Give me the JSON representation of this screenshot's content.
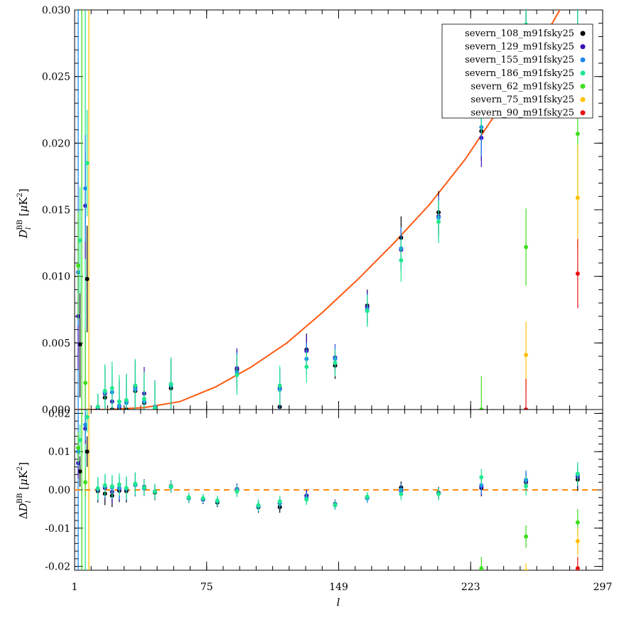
{
  "chart_data": [
    {
      "type": "scatter",
      "panel": "top",
      "ylabel": "D_l^BB [μK²]",
      "ylim": [
        0.0,
        0.03
      ],
      "xlim": [
        1,
        297
      ],
      "x_ticks": [
        "1",
        "75",
        "149",
        "223",
        "297"
      ],
      "y_ticks": [
        "0.000",
        "0.005",
        "0.010",
        "0.015",
        "0.020",
        "0.025",
        "0.030"
      ],
      "legend_position": "top-right",
      "colors": {
        "severn_108_m91fsky25": "#000000",
        "severn_129_m91fsky25": "#3a10b8",
        "severn_155_m91fsky25": "#1e88f0",
        "severn_186_m91fsky25": "#20e890",
        "severn_62_m91fsky25": "#40dd20",
        "severn_75_m91fsky25": "#ffc000",
        "severn_90_m91fsky25": "#e81010"
      },
      "model_curve": {
        "color": "#ff5a10",
        "points": [
          [
            1,
            0.0
          ],
          [
            20,
            0.0
          ],
          [
            40,
            0.00015
          ],
          [
            60,
            0.0006
          ],
          [
            80,
            0.0017
          ],
          [
            100,
            0.0032
          ],
          [
            120,
            0.005
          ],
          [
            140,
            0.0073
          ],
          [
            160,
            0.0098
          ],
          [
            180,
            0.0125
          ],
          [
            200,
            0.0154
          ],
          [
            220,
            0.0188
          ],
          [
            240,
            0.0228
          ],
          [
            260,
            0.027
          ],
          [
            273,
            0.03
          ]
        ]
      },
      "series": [
        {
          "name": "severn_108_m91fsky25",
          "x": [
            4,
            8,
            14,
            18,
            22,
            26,
            30,
            35,
            40,
            46,
            55,
            92,
            116,
            131,
            147,
            165,
            184,
            205,
            229,
            254,
            283
          ],
          "y": [
            0.0049,
            0.0098,
            0.0,
            0.0009,
            0.0,
            0.0,
            0.0,
            0.0014,
            0.0005,
            0.0,
            0.0016,
            0.003,
            0.0002,
            0.0045,
            0.0033,
            0.0078,
            0.0129,
            0.0148,
            0.0209,
            0.0264,
            0.0261
          ],
          "err": [
            0.004,
            0.004,
            0.001,
            0.002,
            0.002,
            0.002,
            0.002,
            0.002,
            0.002,
            0.002,
            0.002,
            0.0015,
            0.0015,
            0.0012,
            0.001,
            0.0012,
            0.0016,
            0.0016,
            0.0022,
            0.0035,
            0.004
          ]
        },
        {
          "name": "severn_129_m91fsky25",
          "x": [
            3,
            7,
            14,
            18,
            22,
            26,
            30,
            35,
            40,
            55,
            92,
            116,
            131,
            147,
            165,
            184,
            205,
            229,
            254,
            283
          ],
          "y": [
            0.007,
            0.0153,
            0.0001,
            0.0012,
            0.0006,
            0.0002,
            0.0006,
            0.0017,
            0.0012,
            0.0019,
            0.0031,
            0.0016,
            0.0044,
            0.0039,
            0.0077,
            0.012,
            0.0145,
            0.0204,
            0.0265,
            0.026
          ],
          "err": [
            0.004,
            0.004,
            0.001,
            0.002,
            0.002,
            0.002,
            0.002,
            0.002,
            0.002,
            0.002,
            0.0015,
            0.0015,
            0.0012,
            0.001,
            0.0012,
            0.0016,
            0.0016,
            0.0022,
            0.0035,
            0.004
          ]
        },
        {
          "name": "severn_155_m91fsky25",
          "x": [
            3,
            7,
            14,
            18,
            22,
            26,
            30,
            35,
            40,
            46,
            55,
            92,
            116,
            131,
            147,
            165,
            184,
            205,
            229,
            254,
            283
          ],
          "y": [
            0.0103,
            0.0166,
            0.0002,
            0.0013,
            0.0013,
            0.0003,
            0.0005,
            0.0015,
            0.0006,
            0.0002,
            0.0018,
            0.0028,
            0.0015,
            0.0038,
            0.0038,
            0.0075,
            0.0121,
            0.0144,
            0.0212,
            0.027,
            0.0263
          ],
          "err": [
            0.004,
            0.004,
            0.001,
            0.002,
            0.002,
            0.002,
            0.002,
            0.002,
            0.002,
            0.002,
            0.002,
            0.0015,
            0.0015,
            0.0012,
            0.001,
            0.0012,
            0.0016,
            0.0016,
            0.0022,
            0.0035,
            0.004
          ]
        },
        {
          "name": "severn_186_m91fsky25",
          "x": [
            4,
            8,
            14,
            18,
            22,
            26,
            30,
            35,
            40,
            46,
            55,
            92,
            116,
            131,
            147,
            165,
            184,
            205,
            229,
            254,
            283
          ],
          "y": [
            0.0127,
            0.0185,
            0.0002,
            0.0014,
            0.0016,
            0.0006,
            0.0007,
            0.0018,
            0.0008,
            0.0001,
            0.0019,
            0.0026,
            0.0018,
            0.0032,
            0.0035,
            0.0074,
            0.0112,
            0.0141,
            0.0229,
            0.0289,
            0.0265
          ],
          "err": [
            0.004,
            0.004,
            0.001,
            0.002,
            0.002,
            0.002,
            0.002,
            0.002,
            0.002,
            0.002,
            0.002,
            0.0015,
            0.0015,
            0.0012,
            0.001,
            0.0012,
            0.0016,
            0.0016,
            0.0022,
            0.0035,
            0.004
          ]
        },
        {
          "name": "severn_62_m91fsky25",
          "x": [
            3,
            7,
            229,
            254,
            283
          ],
          "y": [
            0.0108,
            0.002,
            0.0,
            0.0122,
            0.0207
          ],
          "err": [
            0.004,
            0.004,
            0.0025,
            0.0029,
            0.0045
          ]
        },
        {
          "name": "severn_75_m91fsky25",
          "x": [
            254,
            283
          ],
          "y": [
            0.0041,
            0.0159
          ],
          "err": [
            0.0025,
            0.004
          ]
        },
        {
          "name": "severn_90_m91fsky25",
          "x": [
            254,
            283
          ],
          "y": [
            0.0,
            0.0102
          ],
          "err": [
            0.0023,
            0.0026
          ]
        }
      ]
    },
    {
      "type": "scatter",
      "panel": "bottom",
      "xlabel": "l",
      "ylabel": "ΔD_l^BB [μK²]",
      "ylim": [
        -0.021,
        0.021
      ],
      "xlim": [
        1,
        297
      ],
      "x_ticks": [
        "1",
        "75",
        "149",
        "223",
        "297"
      ],
      "y_ticks": [
        "-0.02",
        "-0.01",
        "0.00",
        "0.01",
        "0.02"
      ],
      "zero_line_color": "#ff8a10",
      "series": [
        {
          "name": "severn_108_m91fsky25",
          "x": [
            4,
            8,
            14,
            18,
            22,
            26,
            30,
            35,
            40,
            46,
            55,
            65,
            73,
            81,
            92,
            104,
            116,
            131,
            147,
            165,
            184,
            205,
            229,
            254,
            283
          ],
          "y": [
            0.0048,
            0.01,
            -0.0003,
            -0.001,
            -0.0015,
            -0.0002,
            -0.0003,
            0.0013,
            0.0004,
            -0.0007,
            0.0008,
            -0.0022,
            -0.0025,
            -0.0033,
            -0.0001,
            -0.0045,
            -0.0045,
            -0.0015,
            -0.0038,
            -0.002,
            0.0006,
            -0.0008,
            0.0005,
            0.002,
            0.0027
          ],
          "err": [
            0.004,
            0.004,
            0.003,
            0.003,
            0.003,
            0.003,
            0.003,
            0.003,
            0.002,
            0.002,
            0.0015,
            0.0012,
            0.0012,
            0.0012,
            0.0015,
            0.0015,
            0.0015,
            0.0015,
            0.0012,
            0.0012,
            0.0016,
            0.0016,
            0.0022,
            0.0025,
            0.003
          ]
        },
        {
          "name": "severn_129_m91fsky25",
          "x": [
            3,
            7,
            14,
            18,
            22,
            26,
            30,
            35,
            40,
            55,
            65,
            73,
            81,
            92,
            104,
            116,
            131,
            147,
            165,
            184,
            205,
            229,
            254,
            283
          ],
          "y": [
            0.007,
            0.016,
            0.0,
            0.0005,
            -0.0005,
            0.0002,
            0.0002,
            0.0015,
            0.0008,
            0.001,
            -0.002,
            -0.0025,
            -0.003,
            0.0002,
            -0.0042,
            -0.0035,
            -0.0015,
            -0.0037,
            -0.002,
            -0.0002,
            -0.001,
            0.0008,
            0.0022,
            0.0035
          ],
          "err": [
            0.004,
            0.004,
            0.003,
            0.003,
            0.003,
            0.003,
            0.003,
            0.003,
            0.002,
            0.0015,
            0.0012,
            0.0012,
            0.0012,
            0.0015,
            0.0015,
            0.0015,
            0.0015,
            0.0012,
            0.0012,
            0.0016,
            0.0016,
            0.0022,
            0.0025,
            0.003
          ]
        },
        {
          "name": "severn_155_m91fsky25",
          "x": [
            3,
            7,
            14,
            18,
            22,
            26,
            30,
            35,
            40,
            46,
            55,
            65,
            73,
            81,
            92,
            104,
            116,
            131,
            147,
            165,
            184,
            205,
            229,
            254,
            283
          ],
          "y": [
            0.01,
            0.017,
            0.0002,
            0.001,
            0.0006,
            0.0005,
            0.0004,
            0.0013,
            0.0004,
            -0.0004,
            0.0008,
            -0.0022,
            -0.0023,
            -0.003,
            0.0,
            -0.0043,
            -0.0035,
            -0.0022,
            -0.004,
            -0.0022,
            0.0,
            -0.001,
            0.0012,
            0.0026,
            0.004
          ],
          "err": [
            0.004,
            0.004,
            0.003,
            0.003,
            0.003,
            0.003,
            0.003,
            0.003,
            0.002,
            0.002,
            0.0015,
            0.0012,
            0.0012,
            0.0012,
            0.0015,
            0.0015,
            0.0015,
            0.0015,
            0.0012,
            0.0012,
            0.0016,
            0.0016,
            0.0022,
            0.0025,
            0.003
          ]
        },
        {
          "name": "severn_186_m91fsky25",
          "x": [
            4,
            8,
            14,
            18,
            22,
            26,
            30,
            35,
            40,
            46,
            55,
            65,
            73,
            81,
            92,
            104,
            116,
            131,
            147,
            165,
            184,
            205,
            229,
            254,
            283
          ],
          "y": [
            0.013,
            0.019,
            0.0004,
            0.0012,
            0.0009,
            0.0014,
            0.0005,
            0.0016,
            0.0006,
            -0.0005,
            0.0009,
            -0.002,
            -0.0022,
            -0.0028,
            -0.0004,
            -0.004,
            -0.003,
            -0.0025,
            -0.0039,
            -0.0018,
            -0.0011,
            -0.0011,
            0.0033,
            0.001,
            0.0042
          ],
          "err": [
            0.004,
            0.004,
            0.003,
            0.003,
            0.003,
            0.003,
            0.003,
            0.003,
            0.002,
            0.002,
            0.0015,
            0.0012,
            0.0012,
            0.0012,
            0.0015,
            0.0015,
            0.0015,
            0.0015,
            0.0012,
            0.0012,
            0.0016,
            0.0016,
            0.0022,
            0.0025,
            0.003
          ]
        },
        {
          "name": "severn_62_m91fsky25",
          "x": [
            3,
            7,
            229,
            254,
            283
          ],
          "y": [
            0.011,
            0.002,
            -0.0205,
            -0.0122,
            -0.0085
          ],
          "err": [
            0.004,
            0.004,
            0.003,
            0.003,
            0.0035
          ]
        },
        {
          "name": "severn_75_m91fsky25",
          "x": [
            254,
            283
          ],
          "y": [
            -0.0212,
            -0.0134
          ],
          "err": [
            0.002,
            0.0035
          ]
        },
        {
          "name": "severn_90_m91fsky25",
          "x": [
            254,
            283
          ],
          "y": [
            -0.026,
            -0.0205
          ],
          "err": [
            0.002,
            0.003
          ]
        }
      ]
    }
  ]
}
